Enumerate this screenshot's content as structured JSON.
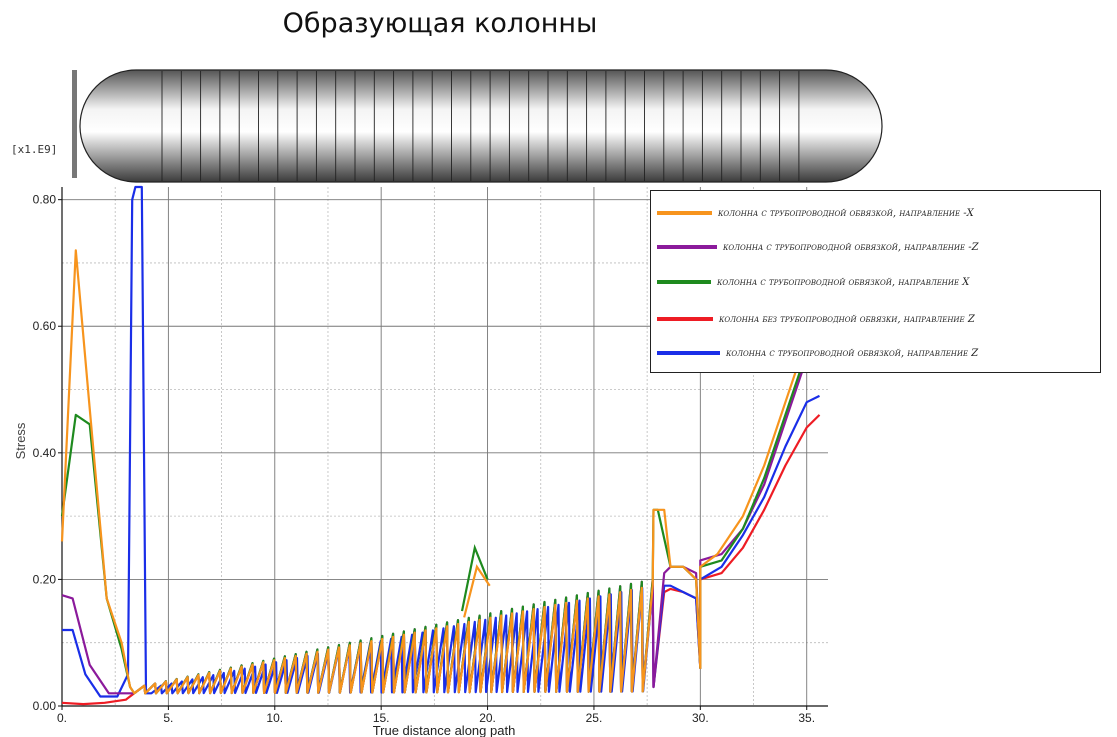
{
  "title": "Образующая колонны",
  "chart_data": {
    "type": "line",
    "multiplier_label": "[x1.E9]",
    "xlabel": "True distance along path",
    "ylabel": "Stress",
    "xlim": [
      0,
      36
    ],
    "ylim": [
      0,
      0.82
    ],
    "x_ticks": [
      0,
      5,
      10,
      15,
      20,
      25,
      30,
      35
    ],
    "x_tick_labels": [
      "0.",
      "5.",
      "10.",
      "15.",
      "20.",
      "25.",
      "30.",
      "35."
    ],
    "y_ticks": [
      0,
      0.2,
      0.4,
      0.6,
      0.8
    ],
    "y_tick_labels": [
      "0.00",
      "0.20",
      "0.40",
      "0.60",
      "0.80"
    ],
    "grid": true,
    "legend_position": "top-right",
    "series": [
      {
        "name": "колонна с трубопроводной обвязкой, направление -X",
        "color": "#f7941d",
        "x": [
          0,
          0.65,
          1.3,
          2.1,
          2.8,
          3.2
        ],
        "y": [
          0.26,
          0.72,
          0.47,
          0.17,
          0.1,
          0.03
        ],
        "sawtooth_start": 3.4,
        "sawtooth_base": 0.02,
        "sawtooth_peak_end": 0.19,
        "after27": {
          "x": [
            27.8,
            28.3,
            28.6,
            29.2,
            29.8
          ],
          "y": [
            0.31,
            0.31,
            0.22,
            0.22,
            0.2
          ]
        },
        "tail": {
          "x": [
            30,
            30.8,
            32,
            33,
            34,
            35.2
          ],
          "y": [
            0.22,
            0.24,
            0.3,
            0.38,
            0.48,
            0.6
          ]
        }
      },
      {
        "name": "колонна с трубопроводной обвязкой, направление -Z",
        "color": "#8b1a9b",
        "x": [
          0,
          0.5,
          1.3,
          2.2,
          3.0,
          3.4
        ],
        "y": [
          0.175,
          0.17,
          0.065,
          0.02,
          0.02,
          0.02
        ],
        "sawtooth_start": 3.4,
        "sawtooth_base": 0.02,
        "sawtooth_peak_end": 0.2,
        "after27": {
          "x": [
            27.8,
            28.3,
            28.6,
            29.2,
            29.8
          ],
          "y": [
            0.03,
            0.21,
            0.22,
            0.22,
            0.21
          ]
        },
        "tail": {
          "x": [
            30,
            31,
            32,
            33,
            34,
            35
          ],
          "y": [
            0.23,
            0.24,
            0.28,
            0.35,
            0.45,
            0.55
          ]
        }
      },
      {
        "name": "колонна с трубопроводной обвязкой, направление X",
        "color": "#1e8a1e",
        "x": [
          0,
          0.65,
          1.3,
          2.1,
          2.8,
          3.2
        ],
        "y": [
          0.3,
          0.46,
          0.445,
          0.17,
          0.09,
          0.03
        ],
        "sawtooth_start": 3.4,
        "sawtooth_base": 0.02,
        "sawtooth_peak_end": 0.2,
        "after27": {
          "x": [
            27.8,
            28.0,
            28.6,
            29.2,
            29.8
          ],
          "y": [
            0.31,
            0.31,
            0.22,
            0.22,
            0.2
          ]
        },
        "tail": {
          "x": [
            30,
            31,
            32,
            33,
            34,
            35
          ],
          "y": [
            0.22,
            0.23,
            0.28,
            0.36,
            0.46,
            0.56
          ]
        }
      },
      {
        "name": "колонна без трубопроводной обвязки, направление Z",
        "color": "#ee1c24",
        "x": [
          0,
          1.0,
          2.0,
          3.0,
          3.4
        ],
        "y": [
          0.005,
          0.003,
          0.005,
          0.01,
          0.02
        ],
        "sawtooth_start": 3.4,
        "sawtooth_base": 0.02,
        "sawtooth_peak_end": 0.19,
        "after27": {
          "x": [
            27.8,
            28.3,
            28.6,
            29.2,
            29.8
          ],
          "y": [
            0.03,
            0.18,
            0.185,
            0.18,
            0.17
          ]
        },
        "tail": {
          "x": [
            30,
            31,
            32,
            33,
            34,
            35,
            35.6
          ],
          "y": [
            0.2,
            0.21,
            0.25,
            0.31,
            0.38,
            0.44,
            0.46
          ]
        }
      },
      {
        "name": "колонна с трубопроводной обвязкой, направление Z",
        "color": "#1a2ee8",
        "x": [
          0,
          0.5,
          1.1,
          1.8,
          2.6,
          3.1,
          3.3,
          3.45,
          3.75,
          3.95,
          4.2
        ],
        "y": [
          0.12,
          0.12,
          0.05,
          0.015,
          0.015,
          0.05,
          0.8,
          0.82,
          0.82,
          0.02,
          0.02
        ],
        "sawtooth_start": 4.2,
        "sawtooth_base": 0.02,
        "sawtooth_peak_end": 0.19,
        "after27": {
          "x": [
            27.8,
            28.3,
            28.6,
            29.2,
            29.8
          ],
          "y": [
            0.03,
            0.19,
            0.19,
            0.18,
            0.17
          ]
        },
        "tail": {
          "x": [
            30,
            31,
            32,
            33,
            34,
            35,
            35.6
          ],
          "y": [
            0.2,
            0.22,
            0.27,
            0.33,
            0.41,
            0.48,
            0.49
          ]
        }
      }
    ]
  }
}
